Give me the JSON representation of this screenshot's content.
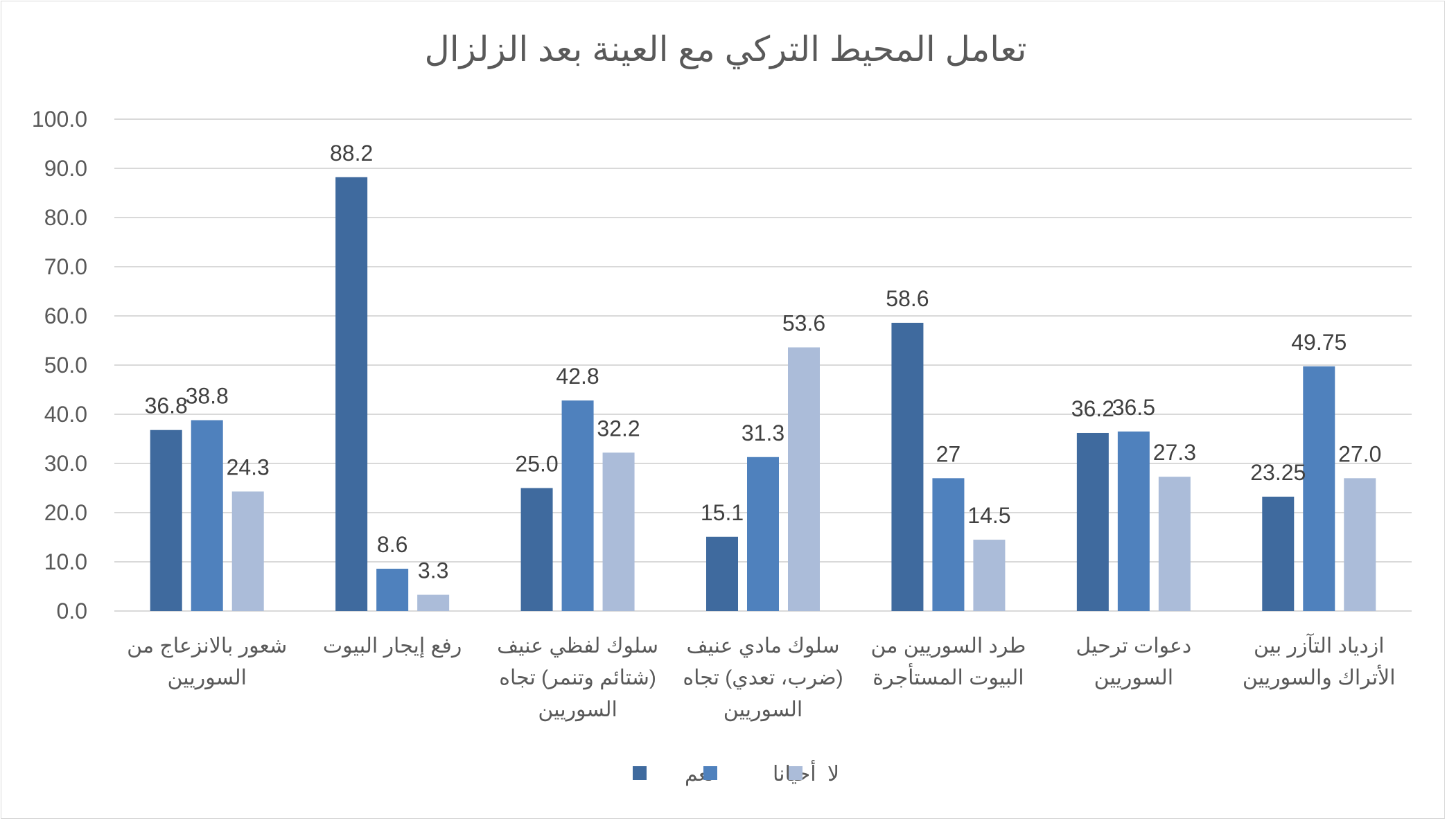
{
  "chart_data": {
    "type": "bar",
    "title": "تعامل المحيط التركي مع العينة بعد الزلزال",
    "categories": [
      [
        "شعور بالانزعاج من",
        "السوريين"
      ],
      [
        "رفع إيجار البيوت"
      ],
      [
        "سلوك لفظي عنيف",
        "(شتائم وتنمر) تجاه",
        "السوريين"
      ],
      [
        "سلوك مادي عنيف",
        "(ضرب، تعدي) تجاه",
        "السوريين"
      ],
      [
        "طرد السوريين من",
        "البيوت المستأجرة"
      ],
      [
        "دعوات ترحيل",
        "السوريين"
      ],
      [
        "ازدياد التآزر بين",
        "الأتراك والسوريين"
      ]
    ],
    "series": [
      {
        "name": "نعم",
        "color": "#3f6a9e",
        "values": [
          36.8,
          88.2,
          25.0,
          15.1,
          58.6,
          36.2,
          23.25
        ],
        "labels": [
          "36.8",
          "88.2",
          "25.0",
          "15.1",
          "58.6",
          "36.2",
          "23.25"
        ]
      },
      {
        "name": "أحيانا",
        "color": "#4f81bd",
        "values": [
          38.8,
          8.6,
          42.8,
          31.3,
          27,
          36.5,
          49.75
        ],
        "labels": [
          "38.8",
          "8.6",
          "42.8",
          "31.3",
          "27",
          "36.5",
          "49.75"
        ]
      },
      {
        "name": "لا",
        "color": "#abbcd9",
        "values": [
          24.3,
          3.3,
          32.2,
          53.6,
          14.5,
          27.3,
          27.0
        ],
        "labels": [
          "24.3",
          "3.3",
          "32.2",
          "53.6",
          "14.5",
          "27.3",
          "27.0"
        ]
      }
    ],
    "ylim": [
      0,
      100
    ],
    "yticks": [
      "0.0",
      "10.0",
      "20.0",
      "30.0",
      "40.0",
      "50.0",
      "60.0",
      "70.0",
      "80.0",
      "90.0",
      "100.0"
    ],
    "grid": true,
    "legend": "bottom"
  }
}
